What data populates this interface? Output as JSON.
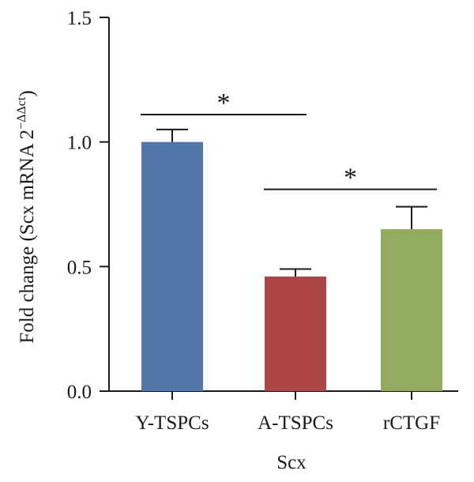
{
  "chart_data": {
    "type": "bar",
    "title": "",
    "xlabel": "Scx",
    "ylabel": {
      "main": "Fold change (Scx mRNA 2",
      "sup": "−ΔΔct",
      "close": ")"
    },
    "categories": [
      "Y-TSPCs",
      "A-TSPCs",
      "rCTGF"
    ],
    "values": [
      1.0,
      0.46,
      0.65
    ],
    "errors": [
      0.05,
      0.03,
      0.09
    ],
    "colors": [
      "#5177a8",
      "#ad4647",
      "#93ab5e"
    ],
    "ylim": [
      0,
      1.5
    ],
    "yticks": [
      "0.0",
      "0.5",
      "1.0",
      "1.5"
    ],
    "grid": false,
    "significance": [
      {
        "from": 0,
        "to": 1,
        "y": 1.11,
        "label": "*"
      },
      {
        "from": 1,
        "to": 2,
        "y": 0.81,
        "label": "*"
      }
    ]
  }
}
